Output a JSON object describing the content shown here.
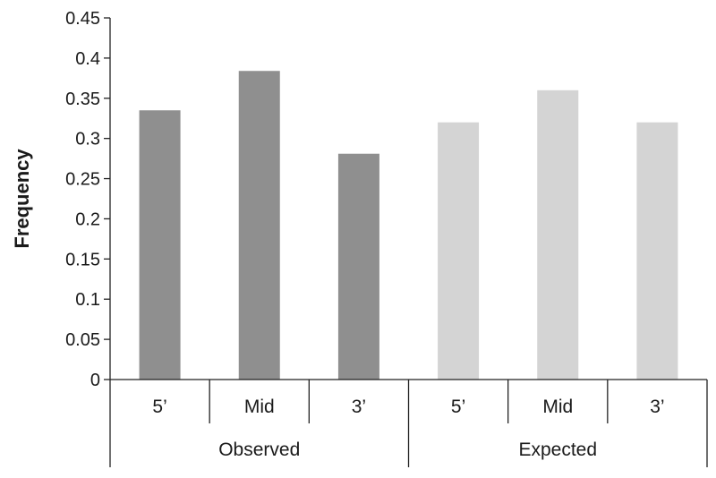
{
  "chart_data": {
    "type": "bar",
    "ylabel": "Frequency",
    "xlabel": "",
    "ylim": [
      0,
      0.45
    ],
    "yticks": [
      0,
      0.05,
      0.1,
      0.15,
      0.2,
      0.25,
      0.3,
      0.35,
      0.4,
      0.45
    ],
    "ytick_labels": [
      "0",
      "0.05",
      "0.1",
      "0.15",
      "0.2",
      "0.25",
      "0.3",
      "0.35",
      "0.4",
      "0.45"
    ],
    "grid": false,
    "legend": "none",
    "groups": [
      {
        "name": "Observed",
        "color": "#8f8f8f",
        "categories": [
          "5’",
          "Mid",
          "3’"
        ],
        "values": [
          0.335,
          0.384,
          0.281
        ]
      },
      {
        "name": "Expected",
        "color": "#d4d4d4",
        "categories": [
          "5’",
          "Mid",
          "3’"
        ],
        "values": [
          0.32,
          0.36,
          0.32
        ]
      }
    ]
  }
}
